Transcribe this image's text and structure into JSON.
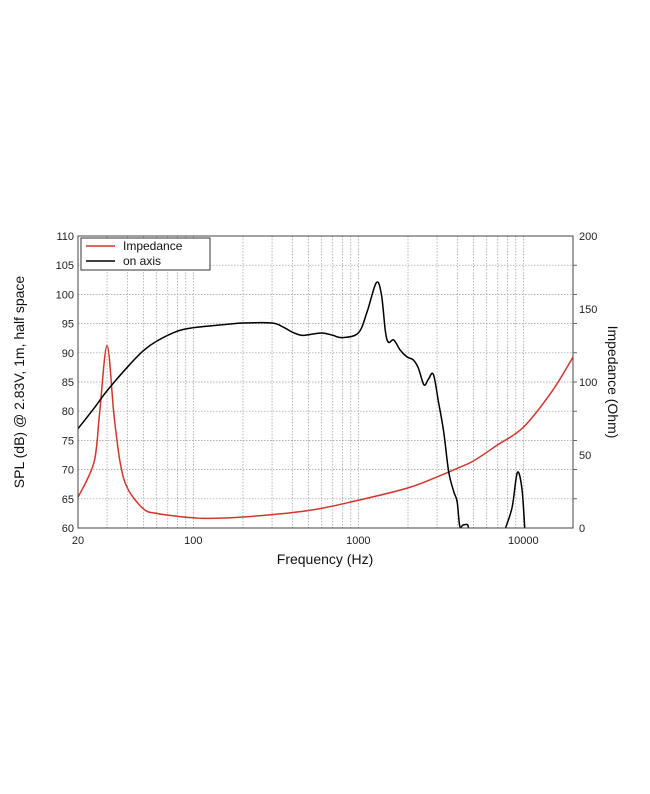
{
  "chart_data": {
    "type": "line",
    "xlabel": "Frequency (Hz)",
    "ylabel": "SPL (dB) @ 2.83V, 1m, half space",
    "y2label": "Impedance (Ohm)",
    "xscale": "log",
    "xlim": [
      20,
      20000
    ],
    "ylim": [
      60,
      110
    ],
    "y2lim": [
      0,
      200
    ],
    "xticks": [
      "20",
      "100",
      "1000",
      "10000"
    ],
    "yticks": [
      "60",
      "65",
      "70",
      "75",
      "80",
      "85",
      "90",
      "95",
      "100",
      "105",
      "110"
    ],
    "y2ticks": [
      "0",
      "50",
      "100",
      "150",
      "200"
    ],
    "grid": true,
    "legend": "top-left",
    "series": [
      {
        "name": "Impedance",
        "axis": "right",
        "color": "#d2352b",
        "points": [
          [
            20,
            21
          ],
          [
            25,
            45
          ],
          [
            27,
            78
          ],
          [
            30,
            125
          ],
          [
            33,
            78
          ],
          [
            36,
            45
          ],
          [
            40,
            27
          ],
          [
            50,
            13
          ],
          [
            60,
            10
          ],
          [
            80,
            8
          ],
          [
            100,
            7
          ],
          [
            120,
            6.6
          ],
          [
            200,
            7.5
          ],
          [
            500,
            12
          ],
          [
            1000,
            19
          ],
          [
            2000,
            27.5
          ],
          [
            3000,
            35
          ],
          [
            4000,
            41
          ],
          [
            5000,
            46
          ],
          [
            7000,
            57
          ],
          [
            10000,
            69
          ],
          [
            15000,
            94
          ],
          [
            20000,
            117
          ]
        ]
      },
      {
        "name": "on axis",
        "axis": "left",
        "color": "#000000",
        "points": [
          [
            20,
            77
          ],
          [
            25,
            80.5
          ],
          [
            30,
            83.5
          ],
          [
            40,
            87.6
          ],
          [
            50,
            90.4
          ],
          [
            60,
            92
          ],
          [
            80,
            93.7
          ],
          [
            100,
            94.3
          ],
          [
            150,
            94.8
          ],
          [
            200,
            95.1
          ],
          [
            300,
            95.1
          ],
          [
            350,
            94.4
          ],
          [
            400,
            93.5
          ],
          [
            450,
            93
          ],
          [
            500,
            93.1
          ],
          [
            600,
            93.4
          ],
          [
            700,
            93
          ],
          [
            800,
            92.6
          ],
          [
            1000,
            93.4
          ],
          [
            1130,
            97
          ],
          [
            1285,
            102
          ],
          [
            1380,
            100
          ],
          [
            1460,
            93.6
          ],
          [
            1525,
            91.8
          ],
          [
            1640,
            92.2
          ],
          [
            1790,
            90.5
          ],
          [
            1970,
            89.3
          ],
          [
            2150,
            88.8
          ],
          [
            2310,
            87.4
          ],
          [
            2500,
            84.5
          ],
          [
            2660,
            85.5
          ],
          [
            2850,
            86.3
          ],
          [
            3060,
            81.6
          ],
          [
            3290,
            76.5
          ],
          [
            3530,
            69.6
          ],
          [
            3790,
            66.2
          ],
          [
            3970,
            64.5
          ],
          [
            4120,
            60.3
          ],
          [
            4300,
            60.5
          ],
          [
            4580,
            60.6
          ],
          [
            4650,
            60
          ],
          null,
          [
            7800,
            60
          ],
          [
            8560,
            63.6
          ],
          [
            9200,
            69.5
          ],
          [
            9800,
            66.8
          ],
          [
            10200,
            60
          ]
        ]
      }
    ]
  }
}
